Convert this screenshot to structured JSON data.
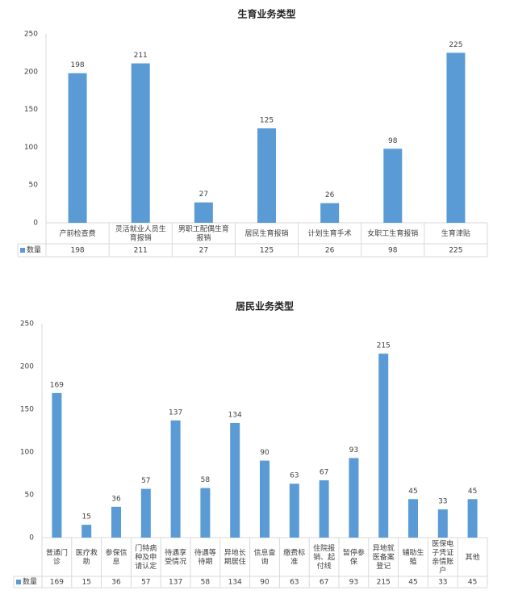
{
  "chart_data": [
    {
      "type": "bar",
      "title": "生育业务类型",
      "categories": [
        "产前检查费",
        "灵活就业人员生育报销",
        "男职工配偶生育报销",
        "居民生育报销",
        "计划生育手术",
        "女职工生育报销",
        "生育津贴"
      ],
      "series": [
        {
          "name": "数量",
          "color": "#5b9bd5",
          "values": [
            198,
            211,
            27,
            125,
            26,
            98,
            225
          ]
        }
      ],
      "ylim": [
        0,
        250
      ],
      "yticks": [
        0,
        50,
        100,
        150,
        200,
        250
      ],
      "grid": false
    },
    {
      "type": "bar",
      "title": "居民业务类型",
      "categories": [
        "普通门诊",
        "医疗救助",
        "参保信息",
        "门特病种及申请认定",
        "待遇享受情况",
        "待遇等待期",
        "异地长期居住",
        "信息查询",
        "缴费标准",
        "住院报销、起付线",
        "暂停参保",
        "异地就医备案登记",
        "辅助生殖",
        "医保电子凭证亲情账户",
        "其他"
      ],
      "series": [
        {
          "name": "数量",
          "color": "#5b9bd5",
          "values": [
            169,
            15,
            36,
            57,
            137,
            58,
            134,
            90,
            63,
            67,
            93,
            215,
            45,
            33,
            45
          ]
        }
      ],
      "ylim": [
        0,
        250
      ],
      "yticks": [
        0,
        50,
        100,
        150,
        200,
        250
      ],
      "grid": false
    }
  ]
}
